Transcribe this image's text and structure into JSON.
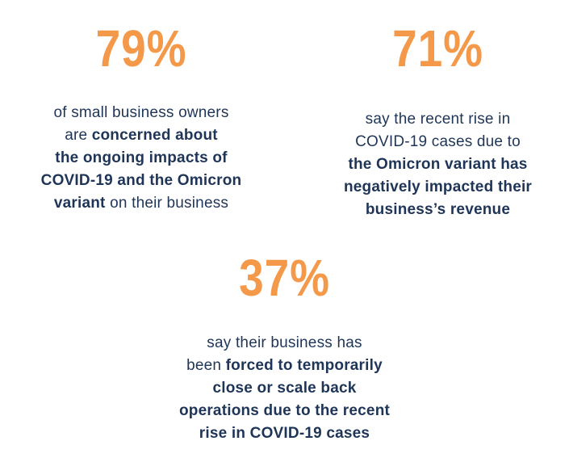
{
  "stats": [
    {
      "value": "79%",
      "lines": [
        [
          {
            "text": "of small business owners",
            "bold": false
          }
        ],
        [
          {
            "text": "are ",
            "bold": false
          },
          {
            "text": "concerned about",
            "bold": true
          }
        ],
        [
          {
            "text": "the ongoing impacts of",
            "bold": true
          }
        ],
        [
          {
            "text": "COVID-19 and the Omicron",
            "bold": true
          }
        ],
        [
          {
            "text": "variant",
            "bold": true
          },
          {
            "text": " on their business",
            "bold": false
          }
        ]
      ]
    },
    {
      "value": "71%",
      "lines": [
        [
          {
            "text": "say the recent rise in",
            "bold": false
          }
        ],
        [
          {
            "text": "COVID-19 cases due to",
            "bold": false
          }
        ],
        [
          {
            "text": "the Omicron variant has",
            "bold": true
          }
        ],
        [
          {
            "text": "negatively impacted their",
            "bold": true
          }
        ],
        [
          {
            "text": "business’s revenue",
            "bold": true
          }
        ]
      ]
    },
    {
      "value": "37%",
      "lines": [
        [
          {
            "text": "say their business has",
            "bold": false
          }
        ],
        [
          {
            "text": "been ",
            "bold": false
          },
          {
            "text": "forced to temporarily",
            "bold": true
          }
        ],
        [
          {
            "text": "close or scale back",
            "bold": true
          }
        ],
        [
          {
            "text": "operations due to the recent",
            "bold": true
          }
        ],
        [
          {
            "text": "rise in COVID-19 cases",
            "bold": true
          }
        ]
      ]
    }
  ],
  "colors": {
    "accent": "#f4994a",
    "text": "#1f3558"
  }
}
